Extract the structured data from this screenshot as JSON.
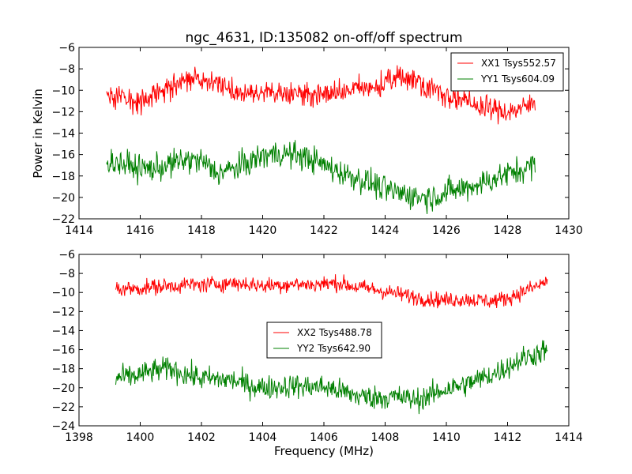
{
  "figure": {
    "title": "ngc_4631, ID:135082 on-off/off spectrum",
    "ylabel": "Power in Kelvin",
    "xlabel": "Frequency (MHz)"
  },
  "chart_data": [
    {
      "type": "line",
      "title": "ngc_4631, ID:135082 on-off/off spectrum",
      "xlabel": "",
      "ylabel": "Power in Kelvin",
      "xlim": [
        1414,
        1430
      ],
      "ylim": [
        -22,
        -6
      ],
      "xticks": [
        1414,
        1416,
        1418,
        1420,
        1422,
        1424,
        1426,
        1428,
        1430
      ],
      "yticks": [
        -22,
        -20,
        -18,
        -16,
        -14,
        -12,
        -10,
        -8,
        -6
      ],
      "grid": false,
      "legend_position": "top-right",
      "series": [
        {
          "name": "XX1 Tsys552.57",
          "color": "#ff0000",
          "noise": 0.8,
          "x": [
            1414.9,
            1415.5,
            1416.0,
            1416.5,
            1417.0,
            1417.5,
            1418.0,
            1418.5,
            1419.0,
            1419.5,
            1420.0,
            1420.5,
            1421.0,
            1421.5,
            1422.0,
            1422.5,
            1423.0,
            1423.5,
            1424.0,
            1424.5,
            1425.0,
            1425.5,
            1426.0,
            1426.5,
            1427.0,
            1427.5,
            1428.0,
            1428.5,
            1428.9
          ],
          "y": [
            -10.5,
            -10.6,
            -11.0,
            -10.5,
            -9.6,
            -9.2,
            -8.9,
            -9.2,
            -10.0,
            -10.3,
            -10.4,
            -10.2,
            -10.3,
            -10.4,
            -10.4,
            -10.2,
            -9.9,
            -9.8,
            -9.4,
            -8.7,
            -9.0,
            -9.8,
            -10.4,
            -11.0,
            -11.4,
            -11.8,
            -12.0,
            -11.7,
            -11.1
          ]
        },
        {
          "name": "YY1 Tsys604.09",
          "color": "#008000",
          "noise": 0.9,
          "x": [
            1414.9,
            1415.5,
            1416.0,
            1416.5,
            1417.0,
            1417.5,
            1418.0,
            1418.5,
            1419.0,
            1419.5,
            1420.0,
            1420.5,
            1421.0,
            1421.5,
            1422.0,
            1422.5,
            1423.0,
            1423.5,
            1424.0,
            1424.5,
            1425.0,
            1425.5,
            1426.0,
            1426.5,
            1427.0,
            1427.5,
            1428.0,
            1428.5,
            1428.9
          ],
          "y": [
            -16.6,
            -16.9,
            -17.3,
            -17.3,
            -16.9,
            -16.5,
            -16.6,
            -17.7,
            -17.4,
            -16.8,
            -16.1,
            -15.9,
            -16.0,
            -16.3,
            -17.0,
            -17.6,
            -18.1,
            -18.6,
            -19.3,
            -19.6,
            -19.9,
            -20.0,
            -19.5,
            -19.2,
            -18.8,
            -18.3,
            -17.8,
            -17.4,
            -16.9
          ]
        }
      ]
    },
    {
      "type": "line",
      "title": "",
      "xlabel": "Frequency (MHz)",
      "ylabel": "",
      "xlim": [
        1398,
        1414
      ],
      "ylim": [
        -24,
        -6
      ],
      "xticks": [
        1398,
        1400,
        1402,
        1404,
        1406,
        1408,
        1410,
        1412,
        1414
      ],
      "yticks": [
        -24,
        -22,
        -20,
        -18,
        -16,
        -14,
        -12,
        -10,
        -8,
        -6
      ],
      "grid": false,
      "legend_position": "center",
      "series": [
        {
          "name": "XX2 Tsys488.78",
          "color": "#ff0000",
          "noise": 0.6,
          "x": [
            1399.2,
            1399.8,
            1400.5,
            1401.0,
            1401.5,
            1402.0,
            1402.5,
            1403.0,
            1403.5,
            1404.0,
            1404.5,
            1405.0,
            1405.5,
            1406.0,
            1406.5,
            1407.0,
            1407.5,
            1408.0,
            1408.5,
            1409.0,
            1409.5,
            1410.0,
            1410.5,
            1411.0,
            1411.5,
            1412.0,
            1412.5,
            1413.0,
            1413.3
          ],
          "y": [
            -9.6,
            -9.6,
            -9.4,
            -9.3,
            -9.2,
            -9.2,
            -9.1,
            -9.0,
            -9.1,
            -9.3,
            -9.2,
            -9.1,
            -9.2,
            -9.1,
            -9.0,
            -9.4,
            -9.6,
            -9.9,
            -10.2,
            -10.5,
            -10.7,
            -10.8,
            -10.7,
            -10.8,
            -10.9,
            -10.6,
            -9.9,
            -9.3,
            -8.8
          ]
        },
        {
          "name": "YY2 Tsys642.90",
          "color": "#008000",
          "noise": 0.9,
          "x": [
            1399.2,
            1399.8,
            1400.5,
            1401.0,
            1401.5,
            1402.0,
            1402.5,
            1403.0,
            1403.5,
            1404.0,
            1404.5,
            1405.0,
            1405.5,
            1406.0,
            1406.5,
            1407.0,
            1407.5,
            1408.0,
            1408.5,
            1409.0,
            1409.5,
            1410.0,
            1410.5,
            1411.0,
            1411.5,
            1412.0,
            1412.5,
            1413.0,
            1413.3
          ],
          "y": [
            -19.0,
            -18.8,
            -18.2,
            -18.0,
            -18.6,
            -19.0,
            -19.1,
            -19.2,
            -19.7,
            -20.0,
            -19.9,
            -19.8,
            -19.9,
            -19.9,
            -20.3,
            -20.8,
            -21.0,
            -21.0,
            -21.0,
            -21.3,
            -20.8,
            -20.1,
            -19.8,
            -19.2,
            -18.6,
            -17.8,
            -16.9,
            -16.4,
            -15.9
          ]
        }
      ]
    }
  ]
}
